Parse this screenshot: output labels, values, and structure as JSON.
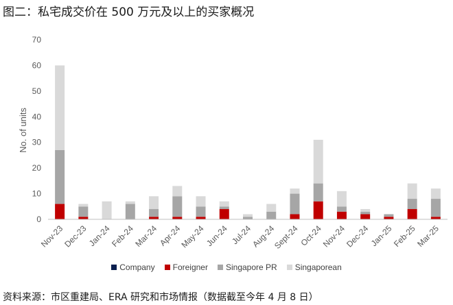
{
  "title": "图二：私宅成交价在 500 万元及以上的买家概况",
  "source": "资料来源：市区重建局、ERA 研究和市场情报（数据截至今年 4 月 8 日）",
  "chart_data": {
    "type": "bar",
    "stacked": true,
    "categories": [
      "Nov-23",
      "Dec-23",
      "Jan-24",
      "Feb-24",
      "Mar-24",
      "Apr-24",
      "May-24",
      "Jun-24",
      "Jul-24",
      "Aug-24",
      "Sept-24",
      "Oct-24",
      "Nov-24",
      "Dec-24",
      "Jan-25",
      "Feb-25",
      "Mar-25"
    ],
    "ylabel": "No. of units",
    "ylim": [
      0,
      70
    ],
    "yticks": [
      0,
      10,
      20,
      30,
      40,
      50,
      60,
      70
    ],
    "grid": false,
    "legend_position": "bottom",
    "series": [
      {
        "name": "Company",
        "color": "#0b1f4f",
        "values": [
          0,
          0,
          0,
          0,
          0,
          0,
          0,
          0,
          0,
          0,
          0,
          0,
          0,
          0,
          0,
          0,
          0
        ]
      },
      {
        "name": "Foreigner",
        "color": "#c00000",
        "values": [
          6,
          1,
          0,
          0,
          1,
          1,
          1,
          4,
          0,
          0,
          2,
          7,
          3,
          2,
          1,
          4,
          1
        ]
      },
      {
        "name": "Singapore PR",
        "color": "#a6a6a6",
        "values": [
          21,
          4,
          0,
          6,
          3,
          8,
          4,
          1,
          1,
          3,
          8,
          7,
          2,
          1,
          1,
          4,
          7
        ]
      },
      {
        "name": "Singaporean",
        "color": "#d9d9d9",
        "values": [
          33,
          1,
          7,
          1,
          5,
          4,
          4,
          2,
          1,
          3,
          2,
          17,
          6,
          1,
          0,
          6,
          4
        ]
      }
    ]
  }
}
